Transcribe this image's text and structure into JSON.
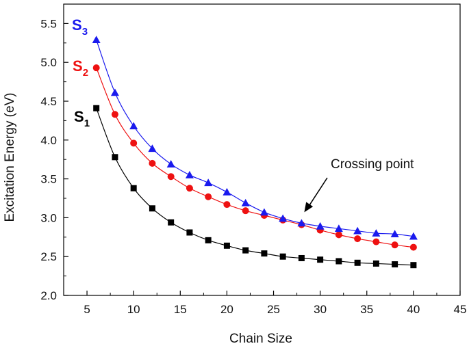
{
  "chart_data": {
    "type": "line",
    "xlabel": "Chain Size",
    "ylabel": "Excitation Energy (eV)",
    "xlim": [
      2.5,
      45
    ],
    "ylim": [
      2.0,
      5.75
    ],
    "x_ticks": [
      5,
      10,
      15,
      20,
      25,
      30,
      35,
      40,
      45
    ],
    "y_ticks": [
      2.0,
      2.5,
      3.0,
      3.5,
      4.0,
      4.5,
      5.0,
      5.5
    ],
    "grid": false,
    "x": [
      6,
      8,
      10,
      12,
      14,
      16,
      18,
      20,
      22,
      24,
      26,
      28,
      30,
      32,
      34,
      36,
      38,
      40
    ],
    "series": [
      {
        "name": "S1",
        "label_main": "S",
        "label_sub": "1",
        "color": "#000000",
        "marker": "square",
        "values": [
          4.41,
          3.78,
          3.38,
          3.12,
          2.94,
          2.81,
          2.71,
          2.64,
          2.58,
          2.54,
          2.5,
          2.48,
          2.46,
          2.44,
          2.42,
          2.41,
          2.4,
          2.39
        ]
      },
      {
        "name": "S2",
        "label_main": "S",
        "label_sub": "2",
        "color": "#ee1111",
        "marker": "circle",
        "values": [
          4.93,
          4.33,
          3.96,
          3.7,
          3.53,
          3.38,
          3.27,
          3.17,
          3.09,
          3.03,
          2.97,
          2.91,
          2.84,
          2.78,
          2.73,
          2.69,
          2.65,
          2.62
        ]
      },
      {
        "name": "S3",
        "label_main": "S",
        "label_sub": "3",
        "color": "#1a1aee",
        "marker": "triangle",
        "values": [
          5.29,
          4.61,
          4.18,
          3.89,
          3.69,
          3.55,
          3.45,
          3.33,
          3.19,
          3.07,
          2.99,
          2.93,
          2.89,
          2.86,
          2.83,
          2.8,
          2.79,
          2.76
        ]
      }
    ],
    "annotations": [
      {
        "text": "Crossing point",
        "point_x": 28,
        "point_y": 3.0
      }
    ]
  }
}
